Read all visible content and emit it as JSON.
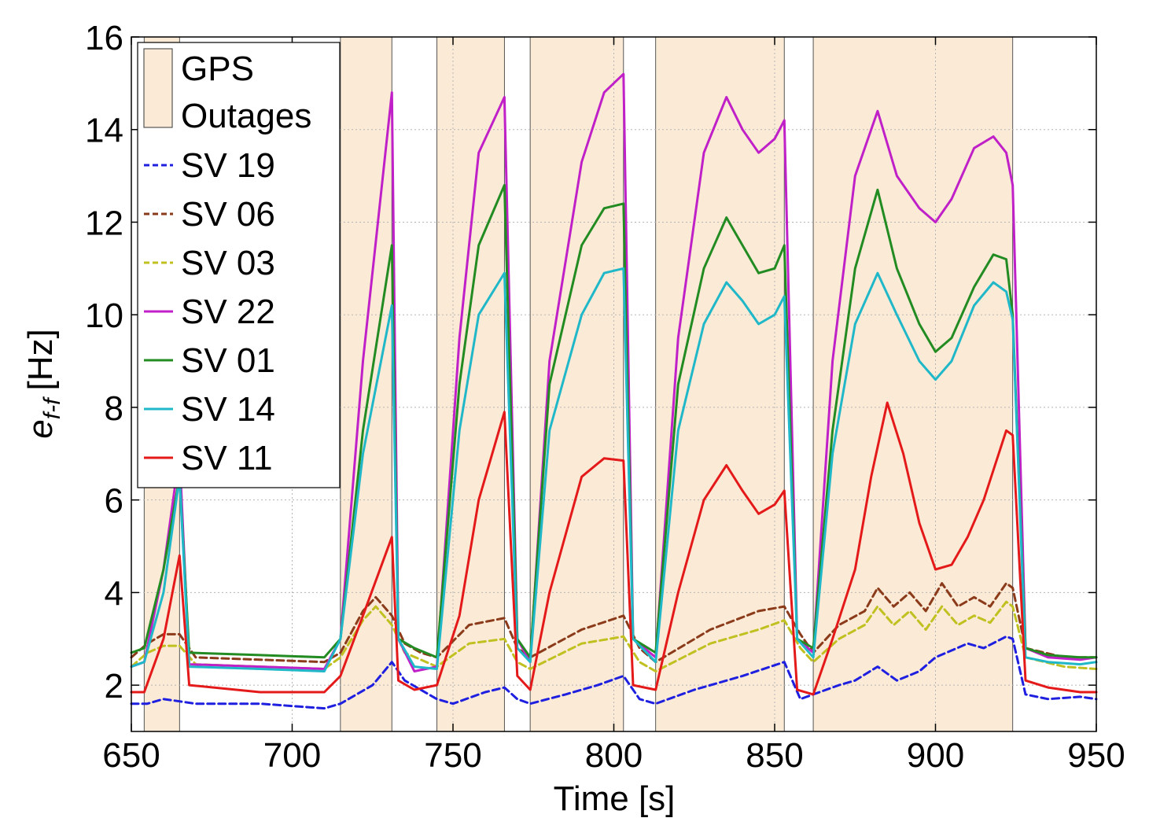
{
  "chart_data": {
    "type": "line",
    "xlabel": "Time [s]",
    "ylabel_main": "e",
    "ylabel_sub": "f-f",
    "ylabel_unit": "[Hz]",
    "xlim": [
      650,
      950
    ],
    "ylim": [
      1,
      16
    ],
    "xticks": [
      650,
      700,
      750,
      800,
      850,
      900,
      950
    ],
    "yticks": [
      2,
      4,
      6,
      8,
      10,
      12,
      14,
      16
    ],
    "grid": true,
    "legend_position": "top-left",
    "outages": {
      "label_line1": "GPS",
      "label_line2": "Outages",
      "color": "#fbebd6",
      "ranges": [
        [
          654,
          665
        ],
        [
          715,
          731
        ],
        [
          745,
          766
        ],
        [
          774,
          803
        ],
        [
          813,
          853
        ],
        [
          862,
          924
        ]
      ]
    },
    "series": [
      {
        "name": "SV 19",
        "color": "#1f1fe0",
        "dash": "dashed",
        "x": [
          650,
          655,
          660,
          665,
          670,
          690,
          710,
          715,
          725,
          731,
          735,
          740,
          745,
          750,
          760,
          766,
          770,
          774,
          785,
          795,
          803,
          808,
          813,
          825,
          840,
          853,
          858,
          862,
          870,
          875,
          882,
          888,
          895,
          900,
          910,
          915,
          922,
          924,
          928,
          935,
          945,
          950
        ],
        "values": [
          1.6,
          1.6,
          1.7,
          1.65,
          1.6,
          1.6,
          1.5,
          1.6,
          2.0,
          2.5,
          2.1,
          1.9,
          1.7,
          1.6,
          1.85,
          1.95,
          1.7,
          1.6,
          1.8,
          2.0,
          2.2,
          1.7,
          1.6,
          1.9,
          2.2,
          2.5,
          1.7,
          1.8,
          2.0,
          2.1,
          2.4,
          2.1,
          2.3,
          2.6,
          2.9,
          2.8,
          3.05,
          3.0,
          1.8,
          1.7,
          1.75,
          1.7
        ]
      },
      {
        "name": "SV 06",
        "color": "#8b3a1a",
        "dash": "dashed",
        "x": [
          650,
          655,
          660,
          665,
          670,
          690,
          710,
          715,
          722,
          726,
          731,
          735,
          740,
          745,
          755,
          766,
          770,
          774,
          790,
          803,
          808,
          813,
          830,
          845,
          853,
          858,
          862,
          870,
          878,
          882,
          887,
          892,
          897,
          902,
          907,
          912,
          917,
          922,
          924,
          928,
          940,
          950
        ],
        "values": [
          2.6,
          2.9,
          3.1,
          3.1,
          2.6,
          2.55,
          2.5,
          2.7,
          3.6,
          3.9,
          3.5,
          2.9,
          2.7,
          2.6,
          3.3,
          3.45,
          2.8,
          2.6,
          3.2,
          3.5,
          2.8,
          2.5,
          3.2,
          3.6,
          3.7,
          3.1,
          2.7,
          3.3,
          3.6,
          4.1,
          3.7,
          4.0,
          3.6,
          4.2,
          3.7,
          3.9,
          3.7,
          4.2,
          4.1,
          2.8,
          2.6,
          2.6
        ]
      },
      {
        "name": "SV 03",
        "color": "#c0c020",
        "dash": "dashed",
        "x": [
          650,
          655,
          660,
          665,
          670,
          690,
          710,
          715,
          722,
          726,
          731,
          735,
          745,
          755,
          766,
          770,
          774,
          790,
          803,
          808,
          813,
          830,
          845,
          853,
          858,
          862,
          870,
          878,
          882,
          887,
          892,
          897,
          902,
          907,
          912,
          917,
          922,
          924,
          928,
          940,
          950
        ],
        "values": [
          2.4,
          2.7,
          2.85,
          2.85,
          2.45,
          2.4,
          2.35,
          2.6,
          3.4,
          3.7,
          3.3,
          2.7,
          2.4,
          2.9,
          3.0,
          2.5,
          2.35,
          2.9,
          3.05,
          2.5,
          2.3,
          2.9,
          3.2,
          3.4,
          2.8,
          2.5,
          3.0,
          3.3,
          3.7,
          3.3,
          3.6,
          3.2,
          3.7,
          3.3,
          3.5,
          3.35,
          3.8,
          3.7,
          2.6,
          2.4,
          2.35
        ]
      },
      {
        "name": "SV 22",
        "color": "#c020c8",
        "dash": "solid",
        "x": [
          650,
          654,
          660,
          665,
          668,
          690,
          710,
          715,
          722,
          731,
          733,
          738,
          745,
          752,
          758,
          766,
          770,
          774,
          780,
          790,
          797,
          803,
          806,
          813,
          820,
          828,
          835,
          840,
          845,
          850,
          853,
          857,
          862,
          868,
          875,
          882,
          888,
          895,
          900,
          905,
          912,
          918,
          922,
          924,
          928,
          935,
          945,
          950
        ],
        "values": [
          2.4,
          2.5,
          4.5,
          7.0,
          2.45,
          2.4,
          2.35,
          3.0,
          9.0,
          14.8,
          3.0,
          2.3,
          2.4,
          9.5,
          13.5,
          14.7,
          3.0,
          2.5,
          9.0,
          13.3,
          14.8,
          15.2,
          3.0,
          2.6,
          9.5,
          13.5,
          14.7,
          14.0,
          13.5,
          13.8,
          14.2,
          3.0,
          2.7,
          9.0,
          13.0,
          14.4,
          13.0,
          12.3,
          12.0,
          12.5,
          13.6,
          13.85,
          13.5,
          12.8,
          2.8,
          2.6,
          2.55,
          2.6
        ]
      },
      {
        "name": "SV 01",
        "color": "#228b22",
        "dash": "solid",
        "x": [
          650,
          654,
          660,
          665,
          668,
          690,
          710,
          715,
          722,
          731,
          733,
          738,
          745,
          752,
          758,
          766,
          770,
          774,
          780,
          790,
          797,
          803,
          806,
          813,
          820,
          828,
          835,
          840,
          845,
          850,
          853,
          857,
          862,
          868,
          875,
          882,
          888,
          895,
          900,
          905,
          912,
          918,
          922,
          924,
          928,
          935,
          945,
          950
        ],
        "values": [
          2.7,
          2.8,
          4.5,
          6.5,
          2.7,
          2.65,
          2.6,
          3.0,
          7.5,
          11.5,
          3.0,
          2.8,
          2.6,
          8.5,
          11.5,
          12.8,
          3.0,
          2.6,
          8.5,
          11.5,
          12.3,
          12.4,
          3.0,
          2.7,
          8.5,
          11.0,
          12.1,
          11.5,
          10.9,
          11.0,
          11.5,
          3.0,
          2.8,
          7.5,
          11.0,
          12.7,
          11.0,
          9.8,
          9.2,
          9.5,
          10.6,
          11.3,
          11.2,
          10.0,
          2.8,
          2.65,
          2.6,
          2.6
        ]
      },
      {
        "name": "SV 14",
        "color": "#20b8c8",
        "dash": "solid",
        "x": [
          650,
          654,
          660,
          665,
          668,
          690,
          710,
          715,
          722,
          731,
          733,
          738,
          745,
          752,
          758,
          766,
          770,
          774,
          780,
          790,
          797,
          803,
          806,
          813,
          820,
          828,
          835,
          840,
          845,
          850,
          853,
          857,
          862,
          868,
          875,
          882,
          888,
          895,
          900,
          905,
          912,
          918,
          922,
          924,
          928,
          935,
          945,
          950
        ],
        "values": [
          2.4,
          2.5,
          4.0,
          6.5,
          2.4,
          2.35,
          2.3,
          3.0,
          7.0,
          10.2,
          3.0,
          2.4,
          2.35,
          7.5,
          10.0,
          10.9,
          2.8,
          2.5,
          7.5,
          10.0,
          10.9,
          11.0,
          3.0,
          2.5,
          7.5,
          9.8,
          10.7,
          10.3,
          9.8,
          10.0,
          10.4,
          3.0,
          2.6,
          7.0,
          9.8,
          10.9,
          10.0,
          9.0,
          8.6,
          9.0,
          10.2,
          10.7,
          10.5,
          9.9,
          2.6,
          2.5,
          2.45,
          2.5
        ]
      },
      {
        "name": "SV 11",
        "color": "#e41a1a",
        "dash": "solid",
        "x": [
          650,
          654,
          660,
          665,
          668,
          690,
          710,
          715,
          722,
          731,
          733,
          738,
          745,
          752,
          758,
          766,
          770,
          774,
          780,
          790,
          797,
          803,
          806,
          813,
          820,
          828,
          835,
          840,
          845,
          850,
          853,
          857,
          862,
          868,
          875,
          880,
          885,
          890,
          895,
          900,
          905,
          910,
          915,
          922,
          924,
          928,
          935,
          945,
          950
        ],
        "values": [
          1.85,
          1.85,
          3.0,
          4.8,
          2.0,
          1.85,
          1.85,
          2.2,
          3.5,
          5.2,
          2.1,
          1.9,
          2.0,
          3.5,
          6.0,
          7.9,
          2.2,
          1.9,
          4.0,
          6.5,
          6.9,
          6.85,
          2.0,
          1.9,
          4.0,
          6.0,
          6.75,
          6.2,
          5.7,
          5.9,
          6.2,
          1.9,
          1.8,
          3.0,
          4.5,
          6.5,
          8.1,
          7.0,
          5.5,
          4.5,
          4.6,
          5.2,
          6.0,
          7.5,
          7.4,
          2.1,
          1.95,
          1.85,
          1.85
        ]
      }
    ]
  }
}
